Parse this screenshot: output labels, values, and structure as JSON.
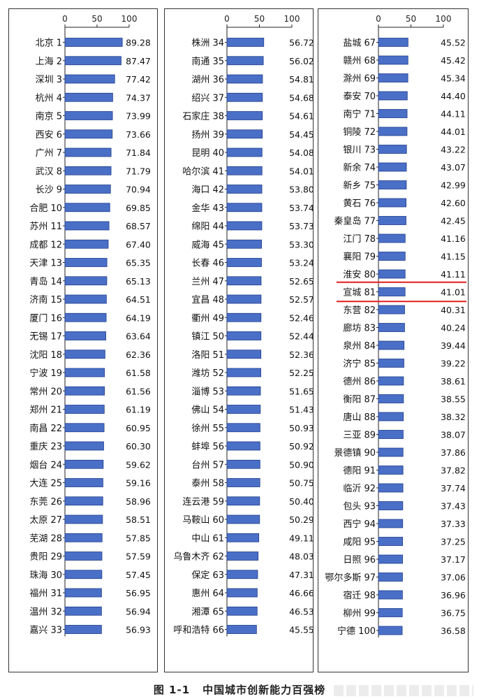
{
  "caption": {
    "figure_no": "图 1-1",
    "title": "中国城市创新能力百强榜"
  },
  "chart_data": [
    {
      "type": "bar",
      "orientation": "horizontal",
      "ticks": [
        0,
        50,
        100
      ],
      "xlim": [
        0,
        100
      ],
      "categories": [
        "北京 1",
        "上海 2",
        "深圳 3",
        "杭州 4",
        "南京 5",
        "西安 6",
        "广州 7",
        "武汉 8",
        "长沙 9",
        "合肥 10",
        "苏州 11",
        "成都 12",
        "天津 13",
        "青岛 14",
        "济南 15",
        "厦门 16",
        "无锡 17",
        "沈阳 18",
        "宁波 19",
        "常州 20",
        "郑州 21",
        "南昌 22",
        "重庆 23",
        "烟台 24",
        "大连 25",
        "东莞 26",
        "太原 27",
        "芜湖 28",
        "贵阳 29",
        "珠海 30",
        "福州 31",
        "温州 32",
        "嘉兴 33"
      ],
      "values": [
        89.28,
        87.47,
        77.42,
        74.37,
        73.99,
        73.66,
        71.84,
        71.79,
        70.94,
        69.85,
        68.57,
        67.4,
        65.35,
        65.13,
        64.51,
        64.19,
        63.64,
        62.36,
        61.58,
        61.56,
        61.19,
        60.95,
        60.3,
        59.62,
        59.16,
        58.96,
        58.51,
        57.85,
        57.59,
        57.45,
        56.95,
        56.94,
        56.93
      ],
      "value_labels": [
        "89.28",
        "87.47",
        "77.42",
        "74.37",
        "73.99",
        "73.66",
        "71.84",
        "71.79",
        "70.94",
        "69.85",
        "68.57",
        "67.40",
        "65.35",
        "65.13",
        "64.51",
        "64.19",
        "63.64",
        "62.36",
        "61.58",
        "61.56",
        "61.19",
        "60.95",
        "60.30",
        "59.62",
        "59.16",
        "58.96",
        "58.51",
        "57.85",
        "57.59",
        "57.45",
        "56.95",
        "56.94",
        "56.93"
      ]
    },
    {
      "type": "bar",
      "orientation": "horizontal",
      "ticks": [
        0,
        50,
        100
      ],
      "xlim": [
        0,
        100
      ],
      "categories": [
        "株洲 34",
        "南通 35",
        "湖州 36",
        "绍兴 37",
        "石家庄 38",
        "扬州 39",
        "昆明 40",
        "哈尔滨 41",
        "海口 42",
        "金华 43",
        "绵阳 44",
        "威海 45",
        "长春 46",
        "兰州 47",
        "宜昌 48",
        "衢州 49",
        "镇江 50",
        "洛阳 51",
        "潍坊 52",
        "淄博 53",
        "佛山 54",
        "徐州 55",
        "蚌埠 56",
        "台州 57",
        "泰州 58",
        "连云港 59",
        "马鞍山 60",
        "中山 61",
        "乌鲁木齐 62",
        "保定 63",
        "惠州 64",
        "湘潭 65",
        "呼和浩特 66"
      ],
      "values": [
        56.72,
        56.02,
        54.81,
        54.68,
        54.61,
        54.45,
        54.08,
        54.01,
        53.8,
        53.74,
        53.73,
        53.3,
        53.24,
        52.65,
        52.57,
        52.46,
        52.44,
        52.36,
        52.25,
        51.65,
        51.43,
        50.93,
        50.92,
        50.9,
        50.75,
        50.4,
        50.29,
        49.11,
        48.03,
        47.31,
        46.66,
        46.53,
        45.55
      ],
      "value_labels": [
        "56.72",
        "56.02",
        "54.81",
        "54.68",
        "54.61",
        "54.45",
        "54.08",
        "54.01",
        "53.80",
        "53.74",
        "53.73",
        "53.30",
        "53.24",
        "52.65",
        "52.57",
        "52.46",
        "52.44",
        "52.36",
        "52.25",
        "51.65",
        "51.43",
        "50.93",
        "50.92",
        "50.90",
        "50.75",
        "50.40",
        "50.29",
        "49.11",
        "48.03",
        "47.31",
        "46.66",
        "46.53",
        "45.55"
      ]
    },
    {
      "type": "bar",
      "orientation": "horizontal",
      "ticks": [
        0,
        50,
        100
      ],
      "xlim": [
        0,
        100
      ],
      "highlight": "宣城 81",
      "highlight_color": "#e11d1d",
      "categories": [
        "盐城 67",
        "赣州 68",
        "滁州 69",
        "泰安 70",
        "南宁 71",
        "铜陵 72",
        "银川 73",
        "新余 74",
        "新乡 75",
        "黄石 76",
        "秦皇岛 77",
        "江门 78",
        "襄阳 79",
        "淮安 80",
        "宣城 81",
        "东营 82",
        "廊坊 83",
        "泉州 84",
        "济宁 85",
        "德州 86",
        "衡阳 87",
        "唐山 88",
        "三亚 89",
        "景德镇 90",
        "德阳 91",
        "临沂 92",
        "包头 93",
        "西宁 94",
        "咸阳 95",
        "日照 96",
        "鄂尔多斯 97",
        "宿迁 98",
        "柳州 99",
        "宁德 100"
      ],
      "values": [
        45.52,
        45.42,
        45.34,
        44.4,
        44.11,
        44.01,
        43.22,
        43.07,
        42.99,
        42.6,
        42.45,
        41.16,
        41.15,
        41.11,
        41.01,
        40.31,
        40.24,
        39.44,
        39.22,
        38.61,
        38.55,
        38.32,
        38.07,
        37.86,
        37.82,
        37.74,
        37.43,
        37.33,
        37.25,
        37.17,
        37.06,
        36.96,
        36.75,
        36.58
      ],
      "value_labels": [
        "45.52",
        "45.42",
        "45.34",
        "44.40",
        "44.11",
        "44.01",
        "43.22",
        "43.07",
        "42.99",
        "42.60",
        "42.45",
        "41.16",
        "41.15",
        "41.11",
        "41.01",
        "40.31",
        "40.24",
        "39.44",
        "39.22",
        "38.61",
        "38.55",
        "38.32",
        "38.07",
        "37.86",
        "37.82",
        "37.74",
        "37.43",
        "37.33",
        "37.25",
        "37.17",
        "37.06",
        "36.96",
        "36.75",
        "36.58"
      ]
    }
  ],
  "colors": {
    "bar_fill": "#4a6fc7",
    "bar_stroke": "#1f3d8a",
    "bar_highlight_line": "#e11d1d"
  }
}
